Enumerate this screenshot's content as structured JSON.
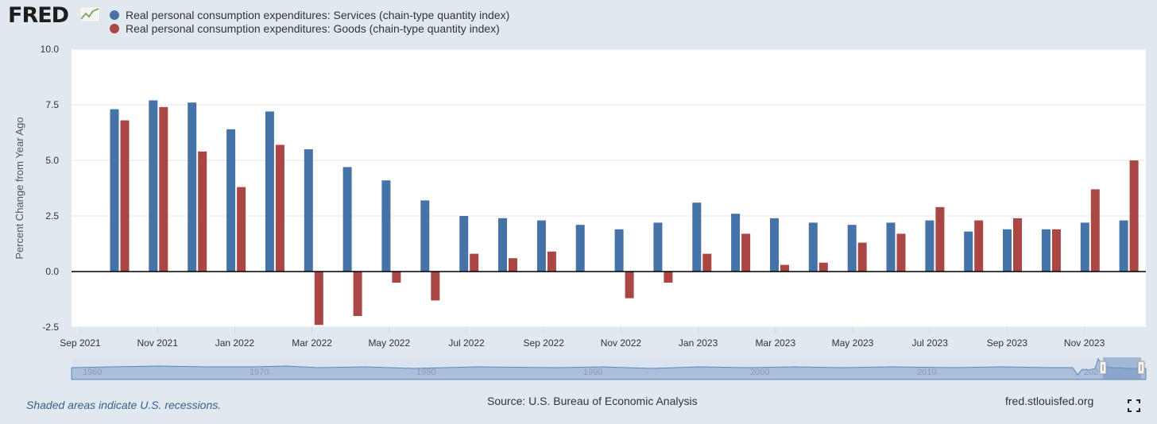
{
  "logo_text": "FRED",
  "legend": [
    {
      "label": "Real personal consumption expenditures: Services (chain-type quantity index)",
      "color": "#4572a7"
    },
    {
      "label": "Real personal consumption expenditures: Goods (chain-type quantity index)",
      "color": "#aa4643"
    }
  ],
  "footer": {
    "recession_note": "Shaded areas indicate U.S. recessions.",
    "source": "Source: U.S. Bureau of Economic Analysis",
    "site": "fred.stlouisfed.org"
  },
  "navigator": {
    "year_labels": [
      "1960",
      "1970",
      "1980",
      "1990",
      "2000",
      "2010",
      "202"
    ]
  },
  "icons": {
    "fullscreen": "fullscreen-icon",
    "logo_chart": "line-chart-icon"
  },
  "chart_data": {
    "type": "bar",
    "ylabel": "Percent Change from Year Ago",
    "ylim": [
      -2.5,
      10.0
    ],
    "yticks": [
      "10.0",
      "7.5",
      "5.0",
      "2.5",
      "0.0",
      "-2.5"
    ],
    "x_tick_labels": [
      "Sep 2021",
      "Nov 2021",
      "Jan 2022",
      "Mar 2022",
      "May 2022",
      "Jul 2022",
      "Sep 2022",
      "Nov 2022",
      "Jan 2023",
      "Mar 2023",
      "May 2023",
      "Jul 2023",
      "Sep 2023",
      "Nov 2023"
    ],
    "categories": [
      "Oct 2021",
      "Nov 2021",
      "Dec 2021",
      "Jan 2022",
      "Feb 2022",
      "Mar 2022",
      "Apr 2022",
      "May 2022",
      "Jun 2022",
      "Jul 2022",
      "Aug 2022",
      "Sep 2022",
      "Oct 2022",
      "Nov 2022",
      "Dec 2022",
      "Jan 2023",
      "Feb 2023",
      "Mar 2023",
      "Apr 2023",
      "May 2023",
      "Jun 2023",
      "Jul 2023",
      "Aug 2023",
      "Sep 2023",
      "Oct 2023",
      "Nov 2023",
      "Dec 2023"
    ],
    "series": [
      {
        "name": "Real personal consumption expenditures: Services (chain-type quantity index)",
        "color": "#4572a7",
        "values": [
          7.3,
          7.7,
          7.6,
          6.4,
          7.2,
          5.5,
          4.7,
          4.1,
          3.2,
          2.5,
          2.4,
          2.3,
          2.1,
          1.9,
          2.2,
          3.1,
          2.6,
          2.4,
          2.2,
          2.1,
          2.2,
          2.3,
          1.8,
          1.9,
          1.9,
          2.2,
          2.3
        ]
      },
      {
        "name": "Real personal consumption expenditures: Goods (chain-type quantity index)",
        "color": "#aa4643",
        "values": [
          6.8,
          7.4,
          5.4,
          3.8,
          5.7,
          -2.4,
          -2.0,
          -0.5,
          -1.3,
          0.8,
          0.6,
          0.9,
          null,
          -1.2,
          -0.5,
          0.8,
          1.7,
          0.3,
          0.4,
          1.3,
          1.7,
          2.9,
          2.3,
          2.4,
          1.9,
          3.7,
          5.0
        ]
      }
    ],
    "grid": true,
    "legend_position": "top-left"
  }
}
